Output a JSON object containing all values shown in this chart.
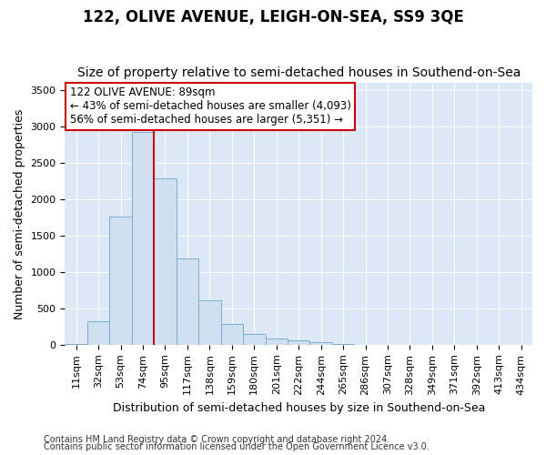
{
  "title": "122, OLIVE AVENUE, LEIGH-ON-SEA, SS9 3QE",
  "subtitle": "Size of property relative to semi-detached houses in Southend-on-Sea",
  "xlabel": "Distribution of semi-detached houses by size in Southend-on-Sea",
  "ylabel": "Number of semi-detached properties",
  "footnote1": "Contains HM Land Registry data © Crown copyright and database right 2024.",
  "footnote2": "Contains public sector information licensed under the Open Government Licence v3.0.",
  "categories": [
    "11sqm",
    "32sqm",
    "53sqm",
    "74sqm",
    "95sqm",
    "117sqm",
    "138sqm",
    "159sqm",
    "180sqm",
    "201sqm",
    "222sqm",
    "244sqm",
    "265sqm",
    "286sqm",
    "307sqm",
    "328sqm",
    "349sqm",
    "371sqm",
    "392sqm",
    "413sqm",
    "434sqm"
  ],
  "values": [
    15,
    320,
    1760,
    2920,
    2280,
    1190,
    610,
    290,
    145,
    80,
    55,
    35,
    5,
    0,
    0,
    0,
    0,
    0,
    0,
    0,
    0
  ],
  "bar_color": "#d0e0f0",
  "bar_edge_color": "#7aaed0",
  "vline_color": "#cc0000",
  "vline_pos": 3.5,
  "annotation_title": "122 OLIVE AVENUE: 89sqm",
  "annotation_line1": "← 43% of semi-detached houses are smaller (4,093)",
  "annotation_line2": "56% of semi-detached houses are larger (5,351) →",
  "annotation_box_color": "#cc0000",
  "ylim": [
    0,
    3600
  ],
  "yticks": [
    0,
    500,
    1000,
    1500,
    2000,
    2500,
    3000,
    3500
  ],
  "fig_bg_color": "#ffffff",
  "plot_bg_color": "#dce8f5",
  "grid_color": "#ffffff",
  "title_fontsize": 12,
  "subtitle_fontsize": 10,
  "label_fontsize": 9,
  "tick_fontsize": 8,
  "footnote_fontsize": 7
}
